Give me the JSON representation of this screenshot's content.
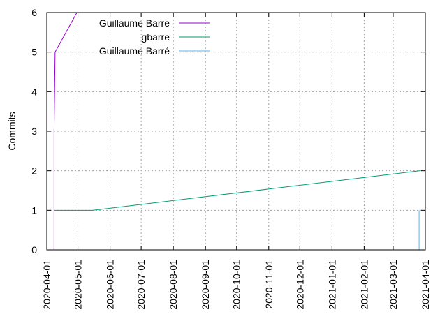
{
  "chart_data": {
    "type": "line",
    "title": "",
    "xlabel": "",
    "ylabel": "Commits",
    "xlim": [
      "2020-04-01",
      "2021-04-01"
    ],
    "ylim": [
      0,
      6
    ],
    "x_ticks": [
      "2020-04-01",
      "2020-05-01",
      "2020-06-01",
      "2020-07-01",
      "2020-08-01",
      "2020-09-01",
      "2020-10-01",
      "2020-11-01",
      "2020-12-01",
      "2021-01-01",
      "2021-02-01",
      "2021-03-01",
      "2021-04-01"
    ],
    "y_ticks": [
      0,
      1,
      2,
      3,
      4,
      5,
      6
    ],
    "grid": true,
    "legend_position": "top-left",
    "series": [
      {
        "name": "Guillaume Barre",
        "color": "#9400d3",
        "points": [
          {
            "x": "2020-04-08",
            "y": 0
          },
          {
            "x": "2020-04-08",
            "y": 3
          },
          {
            "x": "2020-04-09",
            "y": 5
          },
          {
            "x": "2020-04-30",
            "y": 6
          }
        ]
      },
      {
        "name": "gbarre",
        "color": "#009e73",
        "points": [
          {
            "x": "2020-04-08",
            "y": 1
          },
          {
            "x": "2020-05-15",
            "y": 1
          },
          {
            "x": "2021-03-27",
            "y": 2
          }
        ]
      },
      {
        "name": "Guillaume Barré",
        "color": "#56b4e9",
        "points": [
          {
            "x": "2021-03-26",
            "y": 0
          },
          {
            "x": "2021-03-26",
            "y": 1
          }
        ]
      }
    ]
  }
}
